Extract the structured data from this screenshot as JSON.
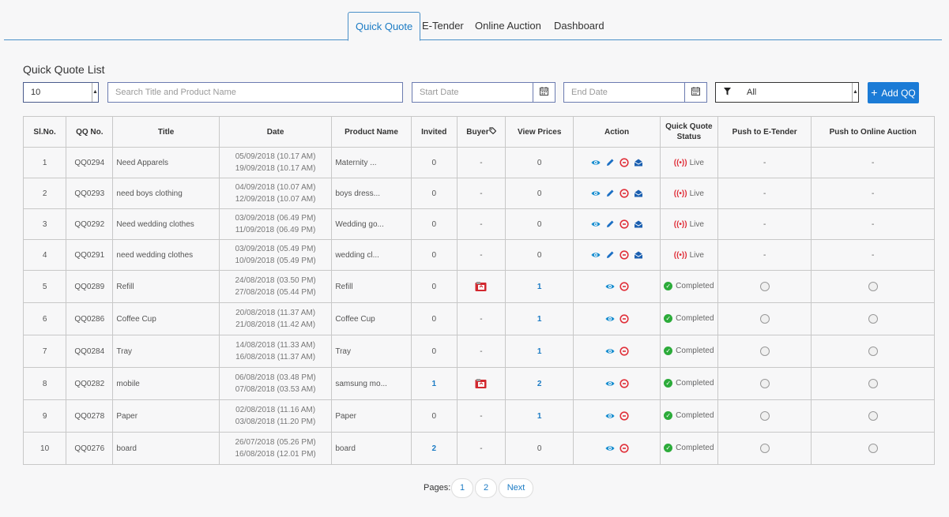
{
  "tabs": [
    {
      "label": "Quick Quote",
      "active": true
    },
    {
      "label": "E-Tender",
      "active": false
    },
    {
      "label": "Online Auction",
      "active": false
    },
    {
      "label": "Dashboard",
      "active": false
    }
  ],
  "page_title": "Quick Quote List",
  "controls": {
    "page_size": "10",
    "search_placeholder": "Search Title and Product Name",
    "start_date_placeholder": "Start Date",
    "end_date_placeholder": "End Date",
    "filter_value": "All",
    "add_button": "Add QQ"
  },
  "table": {
    "headers": [
      "Sl.No.",
      "QQ No.",
      "Title",
      "Date",
      "Product Name",
      "Invited",
      "Buyer",
      "View Prices",
      "Action",
      "Quick Quote Status",
      "Push to E-Tender",
      "Push to Online Auction"
    ],
    "rows": [
      {
        "sl": "1",
        "qq": "QQ0294",
        "title": "Need Apparels",
        "date1": "05/09/2018 (10.17 AM)",
        "date2": "19/09/2018 (10.17 AM)",
        "product": "Maternity ...",
        "invited": "0",
        "buyer": "-",
        "prices": "0",
        "status": "Live",
        "etender": "-",
        "auction": "-"
      },
      {
        "sl": "2",
        "qq": "QQ0293",
        "title": "need boys clothing",
        "date1": "04/09/2018 (10.07 AM)",
        "date2": "12/09/2018 (10.07 AM)",
        "product": "boys dress...",
        "invited": "0",
        "buyer": "-",
        "prices": "0",
        "status": "Live",
        "etender": "-",
        "auction": "-"
      },
      {
        "sl": "3",
        "qq": "QQ0292",
        "title": "Need wedding clothes",
        "date1": "03/09/2018 (06.49 PM)",
        "date2": "11/09/2018 (06.49 PM)",
        "product": "Wedding go...",
        "invited": "0",
        "buyer": "-",
        "prices": "0",
        "status": "Live",
        "etender": "-",
        "auction": "-"
      },
      {
        "sl": "4",
        "qq": "QQ0291",
        "title": "need wedding clothes",
        "date1": "03/09/2018 (05.49 PM)",
        "date2": "10/09/2018 (05.49 PM)",
        "product": "wedding cl...",
        "invited": "0",
        "buyer": "-",
        "prices": "0",
        "status": "Live",
        "etender": "-",
        "auction": "-"
      },
      {
        "sl": "5",
        "qq": "QQ0289",
        "title": "Refill",
        "date1": "24/08/2018 (03.50 PM)",
        "date2": "27/08/2018 (05.44 PM)",
        "product": "Refill",
        "invited": "0",
        "buyer": "icon",
        "prices": "1",
        "status": "Completed",
        "etender": "radio",
        "auction": "radio"
      },
      {
        "sl": "6",
        "qq": "QQ0286",
        "title": "Coffee Cup",
        "date1": "20/08/2018 (11.37 AM)",
        "date2": "21/08/2018 (11.42 AM)",
        "product": "Coffee Cup",
        "invited": "0",
        "buyer": "-",
        "prices": "1",
        "status": "Completed",
        "etender": "radio",
        "auction": "radio"
      },
      {
        "sl": "7",
        "qq": "QQ0284",
        "title": "Tray",
        "date1": "14/08/2018 (11.33 AM)",
        "date2": "16/08/2018 (11.37 AM)",
        "product": "Tray",
        "invited": "0",
        "buyer": "-",
        "prices": "1",
        "status": "Completed",
        "etender": "radio",
        "auction": "radio"
      },
      {
        "sl": "8",
        "qq": "QQ0282",
        "title": "mobile",
        "date1": "06/08/2018 (03.48 PM)",
        "date2": "07/08/2018 (03.53 AM)",
        "product": "samsung mo...",
        "invited": "1",
        "buyer": "icon",
        "prices": "2",
        "status": "Completed",
        "etender": "radio",
        "auction": "radio"
      },
      {
        "sl": "9",
        "qq": "QQ0278",
        "title": "Paper",
        "date1": "02/08/2018 (11.16 AM)",
        "date2": "03/08/2018 (11.20 PM)",
        "product": "Paper",
        "invited": "0",
        "buyer": "-",
        "prices": "1",
        "status": "Completed",
        "etender": "radio",
        "auction": "radio"
      },
      {
        "sl": "10",
        "qq": "QQ0276",
        "title": "board",
        "date1": "26/07/2018 (05.26 PM)",
        "date2": "16/08/2018 (12.01 PM)",
        "product": "board",
        "invited": "2",
        "buyer": "-",
        "prices": "0",
        "status": "Completed",
        "etender": "radio",
        "auction": "radio"
      }
    ]
  },
  "pagination": {
    "label": "Pages:",
    "pages": [
      "1",
      "2"
    ],
    "next": "Next"
  },
  "colors": {
    "accent": "#1b7bc4",
    "live": "#e0303a",
    "completed": "#2cab3a",
    "button": "#1b7bd6"
  }
}
